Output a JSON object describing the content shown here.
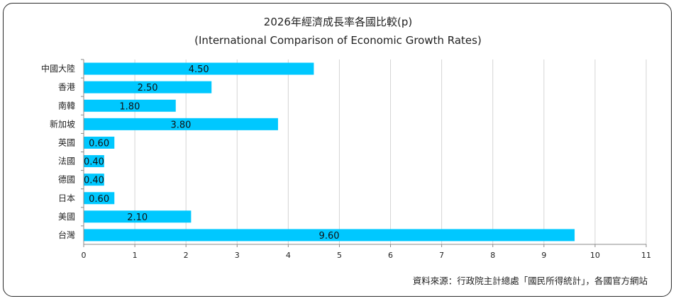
{
  "chart_data": {
    "type": "bar",
    "orientation": "horizontal",
    "title": "2026年經濟成長率各國比較(p)",
    "subtitle": "(International Comparison of Economic Growth Rates)",
    "categories": [
      "中國大陸",
      "香港",
      "南韓",
      "新加坡",
      "英國",
      "法國",
      "德國",
      "日本",
      "美國",
      "台灣"
    ],
    "values": [
      4.5,
      2.5,
      1.8,
      3.8,
      0.6,
      0.4,
      0.4,
      0.6,
      2.1,
      9.6
    ],
    "value_labels": [
      "4.50",
      "2.50",
      "1.80",
      "3.80",
      "0.60",
      "0.40",
      "0.40",
      "0.60",
      "2.10",
      "9.60"
    ],
    "xlim": [
      0,
      11
    ],
    "xticks": [
      0,
      1,
      2,
      3,
      4,
      5,
      6,
      7,
      8,
      9,
      10,
      11
    ],
    "grid": true,
    "legend": "none",
    "bar_color": "#00c8ff",
    "source": "資料來源：行政院主計總處「國民所得統計」，各國官方網站"
  }
}
